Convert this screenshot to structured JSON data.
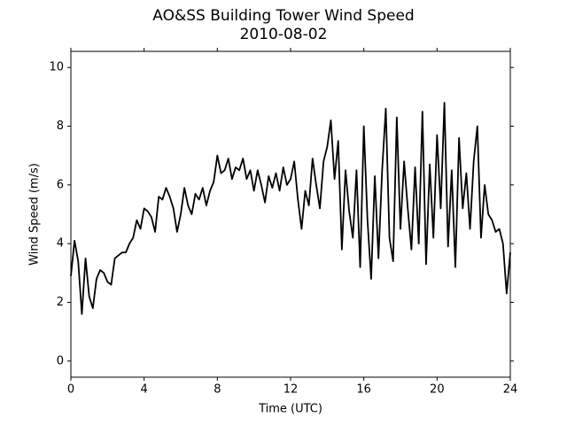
{
  "chart_data": {
    "type": "line",
    "title": "AO&SS Building Tower Wind Speed",
    "subtitle": "2010-08-02",
    "x_label": "Time (UTC)",
    "y_label": "Wind Speed (m/s)",
    "xlim": [
      0,
      24
    ],
    "xticks": [
      0,
      4,
      8,
      12,
      16,
      20,
      24
    ],
    "ylim": [
      -0.55,
      10.55
    ],
    "yticks": [
      0,
      2,
      4,
      6,
      8,
      10
    ],
    "x": [
      0.0,
      0.2,
      0.4,
      0.6,
      0.8,
      1.0,
      1.2,
      1.4,
      1.6,
      1.8,
      2.0,
      2.2,
      2.4,
      2.6,
      2.8,
      3.0,
      3.2,
      3.4,
      3.6,
      3.8,
      4.0,
      4.2,
      4.4,
      4.6,
      4.8,
      5.0,
      5.2,
      5.4,
      5.6,
      5.8,
      6.0,
      6.2,
      6.4,
      6.6,
      6.8,
      7.0,
      7.2,
      7.4,
      7.6,
      7.8,
      8.0,
      8.2,
      8.4,
      8.6,
      8.8,
      9.0,
      9.2,
      9.4,
      9.6,
      9.8,
      10.0,
      10.2,
      10.4,
      10.6,
      10.8,
      11.0,
      11.2,
      11.4,
      11.6,
      11.8,
      12.0,
      12.2,
      12.4,
      12.6,
      12.8,
      13.0,
      13.2,
      13.4,
      13.6,
      13.8,
      14.0,
      14.2,
      14.4,
      14.6,
      14.8,
      15.0,
      15.2,
      15.4,
      15.6,
      15.8,
      16.0,
      16.2,
      16.4,
      16.6,
      16.8,
      17.0,
      17.2,
      17.4,
      17.6,
      17.8,
      18.0,
      18.2,
      18.4,
      18.6,
      18.8,
      19.0,
      19.2,
      19.4,
      19.6,
      19.8,
      20.0,
      20.2,
      20.4,
      20.6,
      20.8,
      21.0,
      21.2,
      21.4,
      21.6,
      21.8,
      22.0,
      22.2,
      22.4,
      22.6,
      22.8,
      23.0,
      23.2,
      23.4,
      23.6,
      23.8,
      24.0
    ],
    "series": [
      {
        "name": "Wind Speed",
        "color": "#000000",
        "values": [
          2.9,
          4.1,
          3.4,
          1.6,
          3.5,
          2.2,
          1.8,
          2.8,
          3.1,
          3.0,
          2.7,
          2.6,
          3.5,
          3.6,
          3.7,
          3.7,
          4.0,
          4.2,
          4.8,
          4.5,
          5.2,
          5.1,
          4.9,
          4.4,
          5.6,
          5.5,
          5.9,
          5.6,
          5.2,
          4.4,
          5.0,
          5.9,
          5.3,
          5.0,
          5.7,
          5.5,
          5.9,
          5.3,
          5.8,
          6.1,
          7.0,
          6.4,
          6.5,
          6.9,
          6.2,
          6.6,
          6.5,
          6.9,
          6.2,
          6.5,
          5.8,
          6.5,
          6.0,
          5.4,
          6.3,
          5.9,
          6.4,
          5.8,
          6.6,
          6.0,
          6.2,
          6.8,
          5.5,
          4.5,
          5.8,
          5.3,
          6.9,
          6.0,
          5.2,
          6.8,
          7.3,
          8.2,
          6.2,
          7.5,
          3.8,
          6.5,
          5.1,
          4.2,
          6.5,
          3.2,
          8.0,
          4.8,
          2.8,
          6.3,
          3.5,
          6.5,
          8.6,
          4.2,
          3.4,
          8.3,
          4.5,
          6.8,
          5.2,
          3.8,
          6.6,
          4.0,
          8.5,
          3.3,
          6.7,
          4.2,
          7.7,
          5.2,
          8.8,
          3.9,
          6.5,
          3.2,
          7.6,
          5.2,
          6.4,
          4.5,
          6.8,
          8.0,
          4.2,
          6.0,
          5.0,
          4.8,
          4.4,
          4.5,
          4.0,
          2.3,
          3.7
        ]
      }
    ]
  }
}
